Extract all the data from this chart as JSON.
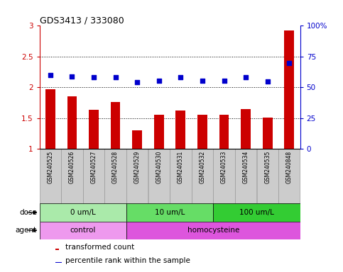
{
  "title": "GDS3413 / 333080",
  "samples": [
    "GSM240525",
    "GSM240526",
    "GSM240527",
    "GSM240528",
    "GSM240529",
    "GSM240530",
    "GSM240531",
    "GSM240532",
    "GSM240533",
    "GSM240534",
    "GSM240535",
    "GSM240848"
  ],
  "bar_values": [
    1.97,
    1.86,
    1.64,
    1.76,
    1.3,
    1.55,
    1.62,
    1.56,
    1.55,
    1.65,
    1.51,
    2.92
  ],
  "dot_values_left": [
    2.2,
    2.18,
    2.17,
    2.17,
    2.08,
    2.11,
    2.16,
    2.11,
    2.11,
    2.16,
    2.1,
    2.4
  ],
  "bar_color": "#cc0000",
  "dot_color": "#0000cc",
  "ylim_left": [
    1.0,
    3.0
  ],
  "ylim_right": [
    0,
    100
  ],
  "yticks_left": [
    1.0,
    1.5,
    2.0,
    2.5,
    3.0
  ],
  "ytick_labels_left": [
    "1",
    "1.5",
    "2",
    "2.5",
    "3"
  ],
  "yticks_right": [
    0,
    25,
    50,
    75,
    100
  ],
  "ytick_labels_right": [
    "0",
    "25",
    "50",
    "75",
    "100%"
  ],
  "hlines": [
    1.5,
    2.0,
    2.5
  ],
  "dose_groups": [
    {
      "label": "0 um/L",
      "start": 0,
      "end": 4,
      "color": "#aaeaaa"
    },
    {
      "label": "10 um/L",
      "start": 4,
      "end": 8,
      "color": "#66dd66"
    },
    {
      "label": "100 um/L",
      "start": 8,
      "end": 12,
      "color": "#33cc33"
    }
  ],
  "agent_groups": [
    {
      "label": "control",
      "start": 0,
      "end": 4,
      "color": "#ee99ee"
    },
    {
      "label": "homocysteine",
      "start": 4,
      "end": 12,
      "color": "#dd55dd"
    }
  ],
  "dose_label": "dose",
  "agent_label": "agent",
  "legend_bar": "transformed count",
  "legend_dot": "percentile rank within the sample",
  "bar_width": 0.45,
  "sample_box_color": "#cccccc",
  "sample_box_border": "#999999",
  "bg_color": "#ffffff"
}
